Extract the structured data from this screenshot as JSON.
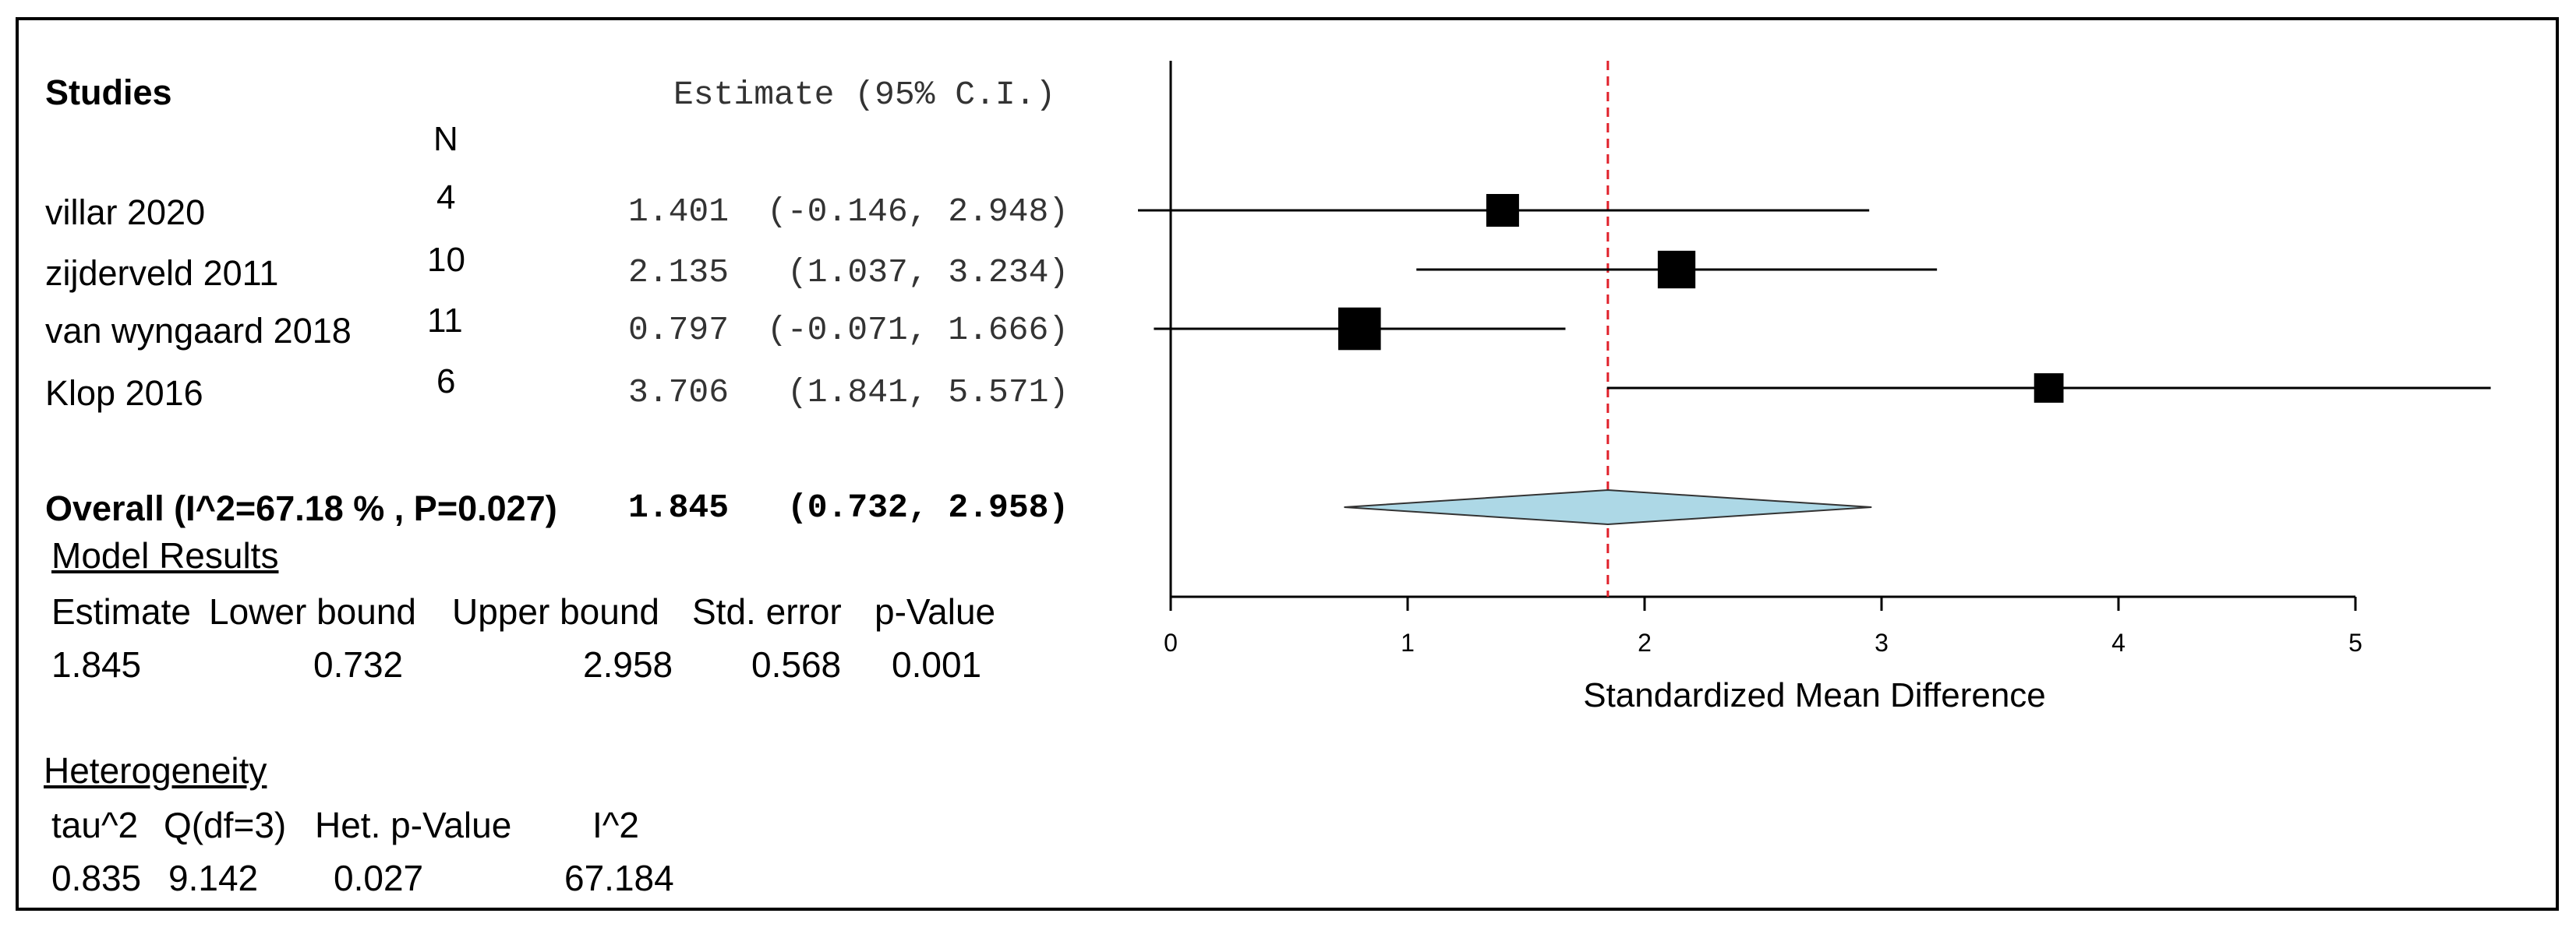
{
  "headers": {
    "studies": "Studies",
    "estimate_ci": "Estimate (95% C.I.)",
    "n": "N"
  },
  "studies": [
    {
      "name": "villar 2020",
      "n": "4",
      "estimate": "1.401",
      "ci": "(-0.146, 2.948)"
    },
    {
      "name": "zijderveld 2011",
      "n": "10",
      "estimate": "2.135",
      "ci": "(1.037, 3.234)"
    },
    {
      "name": "van wyngaard 2018",
      "n": "11",
      "estimate": "0.797",
      "ci": "(-0.071, 1.666)"
    },
    {
      "name": "Klop 2016",
      "n": "6",
      "estimate": "3.706",
      "ci": "(1.841, 5.571)"
    }
  ],
  "overall": {
    "label": "Overall (I^2=67.18 % , P=0.027)",
    "estimate": "1.845",
    "ci": "(0.732, 2.958)"
  },
  "model_results": {
    "title": "Model Results",
    "headers": [
      "Estimate",
      "Lower bound",
      "Upper bound",
      "Std. error",
      "p-Value"
    ],
    "values": [
      "1.845",
      "0.732",
      "2.958",
      "0.568",
      "0.001"
    ]
  },
  "heterogeneity": {
    "title": "Heterogeneity",
    "headers": [
      "tau^2",
      "Q(df=3)",
      "Het. p-Value",
      "I^2"
    ],
    "values": [
      "0.835",
      "9.142",
      "0.027",
      "67.184"
    ]
  },
  "chart_data": {
    "type": "forest",
    "xlabel": "Standardized Mean Difference",
    "xlim": [
      0,
      5
    ],
    "ticks": [
      0,
      1,
      2,
      3,
      4,
      5
    ],
    "tick_labels": [
      "0",
      "1",
      "2",
      "3",
      "4",
      "5"
    ],
    "reference_line": 1.845,
    "studies": [
      {
        "name": "villar 2020",
        "estimate": 1.401,
        "lower": -0.146,
        "upper": 2.948,
        "weight": 1.0
      },
      {
        "name": "zijderveld 2011",
        "estimate": 2.135,
        "lower": 1.037,
        "upper": 3.234,
        "weight": 1.15
      },
      {
        "name": "van wyngaard 2018",
        "estimate": 0.797,
        "lower": -0.071,
        "upper": 1.666,
        "weight": 1.3
      },
      {
        "name": "Klop 2016",
        "estimate": 3.706,
        "lower": 1.841,
        "upper": 5.571,
        "weight": 0.9
      }
    ],
    "overall": {
      "estimate": 1.845,
      "lower": 0.732,
      "upper": 2.958
    },
    "colors": {
      "diamond_fill": "#add8e6",
      "reference_line": "#e0202a",
      "marker": "#000000"
    }
  }
}
